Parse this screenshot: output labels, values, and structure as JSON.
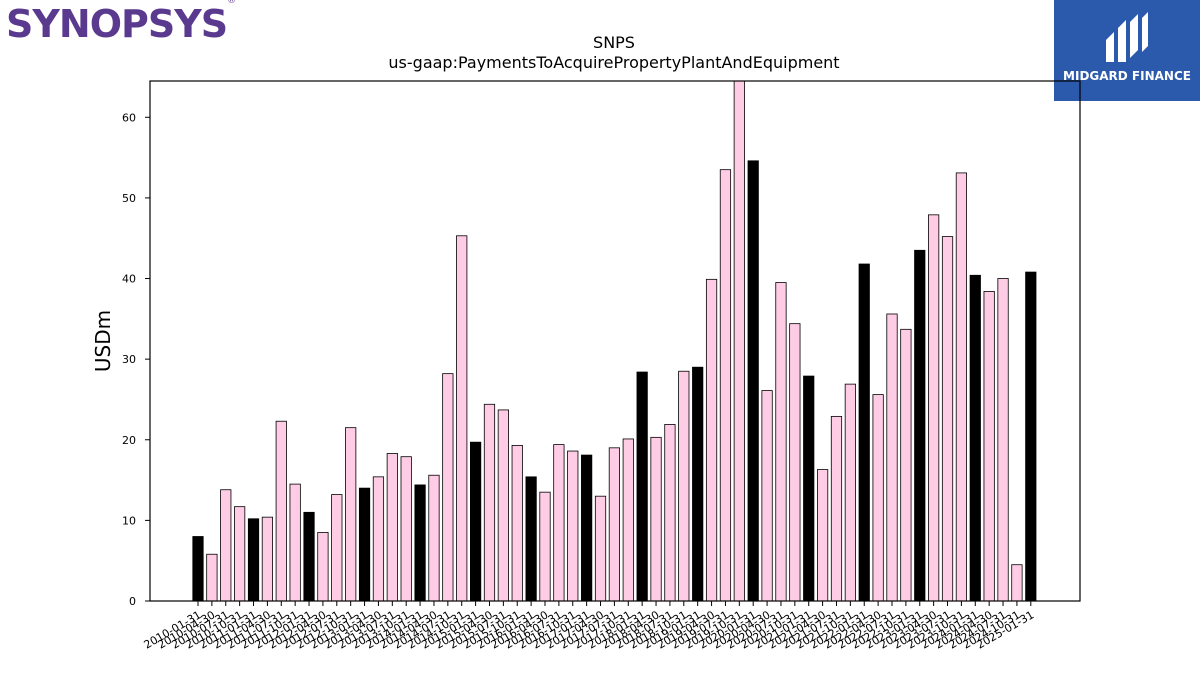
{
  "brand_left": "SYNOPSYS",
  "brand_left_mark": "®",
  "brand_right": "MIDGARD FINANCE",
  "chart_data": {
    "type": "bar",
    "title": "SNPS",
    "subtitle": "us-gaap:PaymentsToAcquirePropertyPlantAndEquipment",
    "ylabel": "USDm",
    "xlabel": "",
    "ylim": [
      0,
      64.5
    ],
    "yticks": [
      0,
      10,
      20,
      30,
      40,
      50,
      60
    ],
    "grid": false,
    "colors": {
      "annual": "#000000",
      "quarter": "#ffcce6",
      "edge": "#000000"
    },
    "categories": [
      "2010-01-31",
      "2010-04-30",
      "2010-07-31",
      "2010-10-31",
      "2011-01-31",
      "2011-04-30",
      "2011-07-31",
      "2011-10-31",
      "2012-01-31",
      "2012-04-30",
      "2012-07-31",
      "2012-10-31",
      "2013-01-31",
      "2013-04-30",
      "2013-07-31",
      "2013-10-31",
      "2014-01-31",
      "2014-04-30",
      "2014-07-31",
      "2014-10-31",
      "2015-01-31",
      "2015-04-30",
      "2015-07-31",
      "2015-10-31",
      "2016-01-31",
      "2016-04-30",
      "2016-07-31",
      "2016-10-31",
      "2017-01-31",
      "2017-04-30",
      "2017-07-31",
      "2017-10-31",
      "2018-01-31",
      "2018-04-30",
      "2018-07-31",
      "2018-10-31",
      "2019-01-31",
      "2019-04-30",
      "2019-07-31",
      "2019-10-31",
      "2020-01-31",
      "2020-04-30",
      "2020-07-31",
      "2020-10-31",
      "2021-01-31",
      "2021-04-30",
      "2021-07-31",
      "2021-10-31",
      "2022-01-31",
      "2022-04-30",
      "2022-07-31",
      "2022-10-31",
      "2023-01-31",
      "2023-04-30",
      "2023-07-31",
      "2023-10-31",
      "2024-01-31",
      "2024-04-30",
      "2024-07-31",
      "2024-10-31",
      "2025-01-31"
    ],
    "values": [
      8.0,
      5.8,
      13.8,
      11.7,
      10.2,
      10.4,
      22.3,
      14.5,
      11.0,
      8.5,
      13.2,
      21.5,
      14.0,
      15.4,
      18.3,
      17.9,
      14.4,
      15.6,
      28.2,
      45.3,
      19.7,
      24.4,
      23.7,
      19.3,
      15.4,
      13.5,
      19.4,
      18.6,
      18.1,
      13.0,
      19.0,
      20.1,
      28.4,
      20.3,
      21.9,
      28.5,
      29.0,
      39.9,
      53.5,
      64.8,
      54.6,
      26.1,
      39.5,
      34.4,
      27.9,
      16.3,
      22.9,
      26.9,
      41.8,
      25.6,
      35.6,
      33.7,
      43.5,
      47.9,
      45.2,
      53.1,
      40.4,
      38.4,
      40.0,
      4.5,
      40.8
    ]
  }
}
